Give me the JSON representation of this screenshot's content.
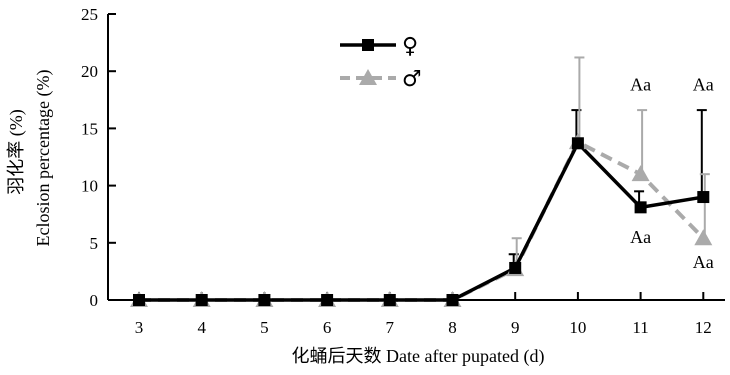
{
  "chart_data": {
    "type": "line",
    "title": "",
    "xlabel": "化蛹后天数 Date after pupated (d)",
    "ylabel_line1": "羽化率 (%)",
    "ylabel_line2": "Eclosion percentage (%)",
    "x": [
      3,
      4,
      5,
      6,
      7,
      8,
      9,
      10,
      11,
      12
    ],
    "x_tick_labels": [
      "3",
      "4",
      "5",
      "6",
      "7",
      "8",
      "9",
      "10",
      "11",
      "12"
    ],
    "ylim": [
      0,
      25
    ],
    "y_ticks": [
      0,
      5,
      10,
      15,
      20,
      25
    ],
    "y_tick_labels": [
      "0",
      "5",
      "10",
      "15",
      "20",
      "25"
    ],
    "grid": false,
    "legend_position": "top-left",
    "series": [
      {
        "name": "♀",
        "marker": "square",
        "color": "#000000",
        "dash": false,
        "values": [
          0,
          0,
          0,
          0,
          0,
          0,
          2.8,
          13.7,
          8.1,
          9.0
        ],
        "error_upper": [
          0,
          0,
          0,
          0,
          0,
          0,
          4.0,
          16.6,
          9.5,
          16.6
        ]
      },
      {
        "name": "♂",
        "marker": "triangle",
        "color": "#aaaaaa",
        "dash": true,
        "values": [
          0,
          0,
          0,
          0,
          0,
          0,
          2.7,
          13.8,
          11.0,
          5.4
        ],
        "error_upper": [
          0,
          0,
          0,
          0,
          0,
          0,
          5.4,
          21.2,
          16.6,
          11.0
        ]
      }
    ],
    "annotations": [
      {
        "text": "Aa",
        "x": 11,
        "y": 18.3
      },
      {
        "text": "Aa",
        "x": 12,
        "y": 18.3
      },
      {
        "text": "Aa",
        "x": 11,
        "y": 5.0
      },
      {
        "text": "Aa",
        "x": 12,
        "y": 2.8
      }
    ]
  }
}
